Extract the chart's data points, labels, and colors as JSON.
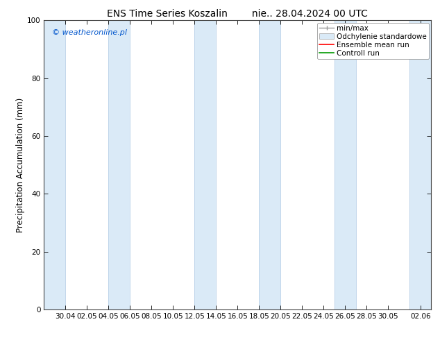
{
  "title": "ENS Time Series Koszalin        nie.. 28.04.2024 00 UTC",
  "ylabel": "Precipitation Accumulation (mm)",
  "ylim": [
    0,
    100
  ],
  "yticks": [
    0,
    20,
    40,
    60,
    80,
    100
  ],
  "xtick_labels": [
    "30.04",
    "02.05",
    "04.05",
    "06.05",
    "08.05",
    "10.05",
    "12.05",
    "14.05",
    "16.05",
    "18.05",
    "20.05",
    "22.05",
    "24.05",
    "26.05",
    "28.05",
    "30.05",
    "02.06"
  ],
  "xtick_days": [
    2,
    4,
    6,
    8,
    10,
    12,
    14,
    16,
    18,
    20,
    22,
    24,
    26,
    28,
    30,
    32,
    35
  ],
  "watermark": "© weatheronline.pl",
  "watermark_color": "#0055cc",
  "band_color": "#daeaf7",
  "band_edge_color": "#b8d0e8",
  "title_fontsize": 10,
  "tick_fontsize": 7.5,
  "ylabel_fontsize": 8.5,
  "legend_fontsize": 7.5,
  "background_color": "#ffffff",
  "plot_bg_color": "#ffffff",
  "minmax_color": "#999999",
  "ensemble_color": "#ff0000",
  "controll_color": "#009900",
  "band_positions": [
    [
      0,
      2
    ],
    [
      6,
      8
    ],
    [
      14,
      16
    ],
    [
      20,
      22
    ],
    [
      27,
      29
    ],
    [
      34,
      36
    ]
  ],
  "xlim": [
    0,
    36
  ],
  "total_days": 36
}
